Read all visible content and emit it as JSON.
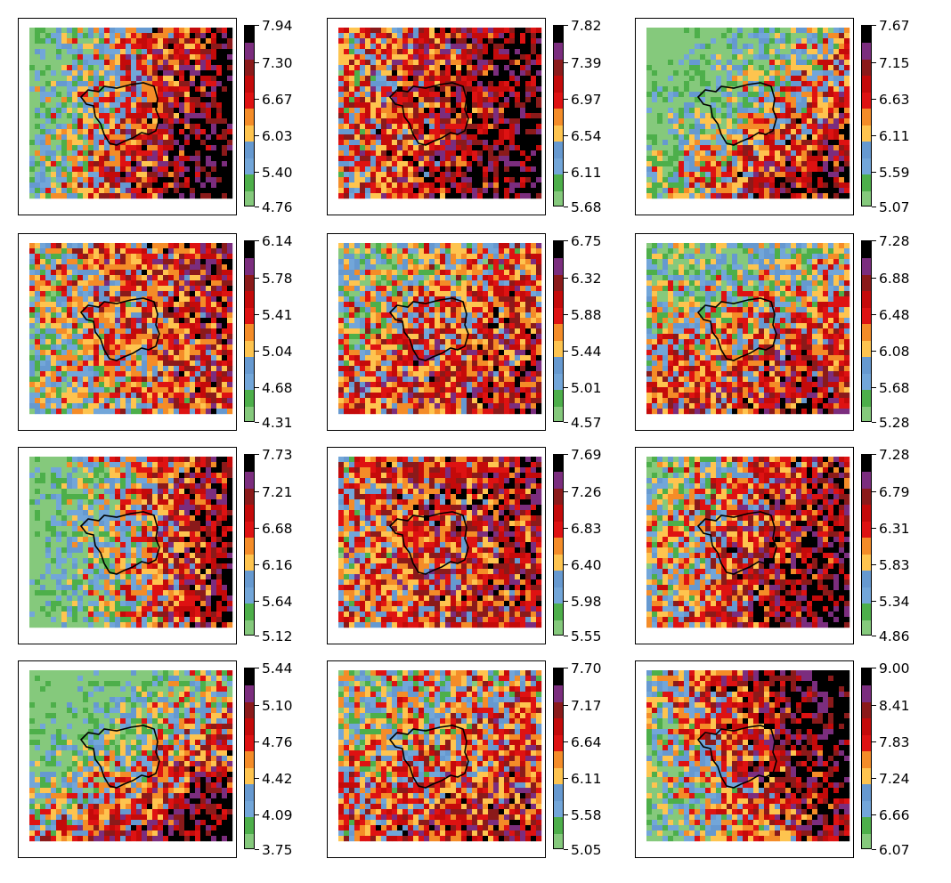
{
  "colors": {
    "palette": [
      "#85c97c",
      "#4daf4a",
      "#72a6d9",
      "#6699d0",
      "#fec44f",
      "#f48c28",
      "#de1212",
      "#c40a0a",
      "#8b1a1a",
      "#7b2d7e",
      "#000000"
    ],
    "boundary": "#000000"
  },
  "panels": [
    {
      "id": "r1c1",
      "colorbar_ticks": [
        "7.94",
        "7.30",
        "6.67",
        "6.03",
        "5.40",
        "4.76"
      ],
      "gradient": {
        "wx": 0.9,
        "wy": 0.25,
        "bias": 0.05
      }
    },
    {
      "id": "r1c2",
      "colorbar_ticks": [
        "7.82",
        "7.39",
        "6.97",
        "6.54",
        "6.11",
        "5.68"
      ],
      "gradient": {
        "wx": 0.5,
        "wy": 0.1,
        "bias": 0.2
      }
    },
    {
      "id": "r1c3",
      "colorbar_ticks": [
        "7.67",
        "7.15",
        "6.63",
        "6.11",
        "5.59",
        "5.07"
      ],
      "gradient": {
        "wx": 0.7,
        "wy": 0.6,
        "bias": -0.15
      }
    },
    {
      "id": "r2c1",
      "colorbar_ticks": [
        "6.14",
        "5.78",
        "5.41",
        "5.04",
        "4.68",
        "4.31"
      ],
      "gradient": {
        "wx": 0.4,
        "wy": -0.2,
        "bias": 0.0
      }
    },
    {
      "id": "r2c2",
      "colorbar_ticks": [
        "6.75",
        "6.32",
        "5.88",
        "5.44",
        "5.01",
        "4.57"
      ],
      "gradient": {
        "wx": 0.3,
        "wy": 0.3,
        "bias": 0.0
      }
    },
    {
      "id": "r2c3",
      "colorbar_ticks": [
        "7.28",
        "6.88",
        "6.48",
        "6.08",
        "5.68",
        "5.28"
      ],
      "gradient": {
        "wx": 0.2,
        "wy": 0.5,
        "bias": -0.05
      }
    },
    {
      "id": "r3c1",
      "colorbar_ticks": [
        "7.73",
        "7.21",
        "6.68",
        "6.16",
        "5.64",
        "5.12"
      ],
      "gradient": {
        "wx": 0.9,
        "wy": 0.0,
        "bias": -0.1
      }
    },
    {
      "id": "r3c2",
      "colorbar_ticks": [
        "7.69",
        "7.26",
        "6.83",
        "6.40",
        "5.98",
        "5.55"
      ],
      "gradient": {
        "wx": 0.3,
        "wy": -0.1,
        "bias": 0.1
      }
    },
    {
      "id": "r3c3",
      "colorbar_ticks": [
        "7.28",
        "6.79",
        "6.31",
        "5.83",
        "5.34",
        "4.86"
      ],
      "gradient": {
        "wx": 0.6,
        "wy": 0.2,
        "bias": 0.1
      }
    },
    {
      "id": "r4c1",
      "colorbar_ticks": [
        "5.44",
        "5.10",
        "4.76",
        "4.42",
        "4.09",
        "3.75"
      ],
      "gradient": {
        "wx": 0.6,
        "wy": 0.7,
        "bias": -0.15
      }
    },
    {
      "id": "r4c2",
      "colorbar_ticks": [
        "7.70",
        "7.17",
        "6.64",
        "6.11",
        "5.58",
        "5.05"
      ],
      "gradient": {
        "wx": 0.2,
        "wy": 0.3,
        "bias": 0.0
      }
    },
    {
      "id": "r4c3",
      "colorbar_ticks": [
        "9.00",
        "8.41",
        "7.83",
        "7.24",
        "6.66",
        "6.07"
      ],
      "gradient": {
        "wx": 0.8,
        "wy": -0.3,
        "bias": 0.1
      }
    }
  ]
}
